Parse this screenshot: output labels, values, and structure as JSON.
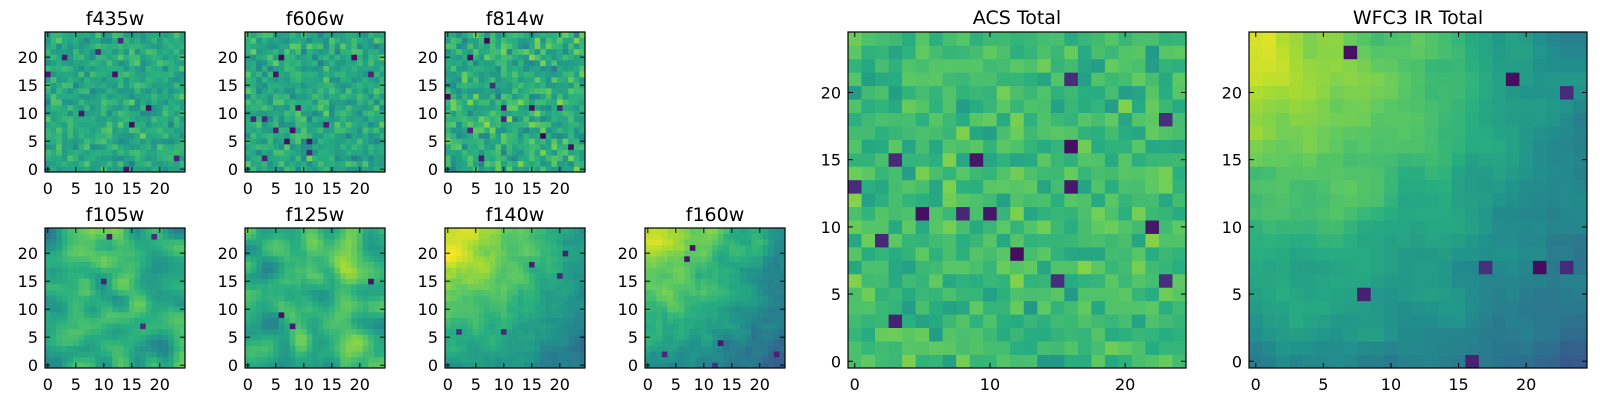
{
  "figure_title": "",
  "colormap": {
    "name": "viridis",
    "stops": [
      "#440154",
      "#472d7b",
      "#3b528b",
      "#2c728e",
      "#21918c",
      "#28ae80",
      "#5ec962",
      "#addc30",
      "#fde725"
    ]
  },
  "chart_data": [
    {
      "type": "heatmap",
      "title": "f435w",
      "grid_size": 25,
      "x_ticks": [
        0,
        5,
        10,
        15,
        20
      ],
      "y_ticks": [
        0,
        5,
        10,
        15,
        20
      ],
      "xlim": [
        -0.5,
        24.5
      ],
      "ylim": [
        -0.5,
        24.5
      ],
      "pattern": "noise",
      "seed": 11,
      "mean": 0.6,
      "spread": 0.18,
      "n_dark": 10
    },
    {
      "type": "heatmap",
      "title": "f606w",
      "grid_size": 25,
      "x_ticks": [
        0,
        5,
        10,
        15,
        20
      ],
      "y_ticks": [
        0,
        5,
        10,
        15,
        20
      ],
      "xlim": [
        -0.5,
        24.5
      ],
      "ylim": [
        -0.5,
        24.5
      ],
      "pattern": "noise",
      "seed": 23,
      "mean": 0.6,
      "spread": 0.2,
      "n_dark": 14
    },
    {
      "type": "heatmap",
      "title": "f814w",
      "grid_size": 25,
      "x_ticks": [
        0,
        5,
        10,
        15,
        20
      ],
      "y_ticks": [
        0,
        5,
        10,
        15,
        20
      ],
      "xlim": [
        -0.5,
        24.5
      ],
      "ylim": [
        -0.5,
        24.5
      ],
      "pattern": "noise",
      "seed": 37,
      "mean": 0.62,
      "spread": 0.24,
      "n_dark": 12
    },
    {
      "type": "heatmap",
      "title": "f105w",
      "grid_size": 25,
      "x_ticks": [
        0,
        5,
        10,
        15,
        20
      ],
      "y_ticks": [
        0,
        5,
        10,
        15,
        20
      ],
      "xlim": [
        -0.5,
        24.5
      ],
      "ylim": [
        -0.5,
        24.5
      ],
      "pattern": "smooth",
      "seed": 41,
      "mean": 0.62,
      "spread": 0.26,
      "n_dark": 4
    },
    {
      "type": "heatmap",
      "title": "f125w",
      "grid_size": 25,
      "x_ticks": [
        0,
        5,
        10,
        15,
        20
      ],
      "y_ticks": [
        0,
        5,
        10,
        15,
        20
      ],
      "xlim": [
        -0.5,
        24.5
      ],
      "ylim": [
        -0.5,
        24.5
      ],
      "pattern": "smooth",
      "seed": 53,
      "mean": 0.65,
      "spread": 0.26,
      "n_dark": 3
    },
    {
      "type": "heatmap",
      "title": "f140w",
      "grid_size": 25,
      "x_ticks": [
        0,
        5,
        10,
        15,
        20
      ],
      "y_ticks": [
        0,
        5,
        10,
        15,
        20
      ],
      "xlim": [
        -0.5,
        24.5
      ],
      "ylim": [
        -0.5,
        24.5
      ],
      "pattern": "gradient",
      "seed": 61,
      "mean": 0.55,
      "spread": 0.14,
      "n_dark": 5
    },
    {
      "type": "heatmap",
      "title": "f160w",
      "grid_size": 25,
      "x_ticks": [
        0,
        5,
        10,
        15,
        20
      ],
      "y_ticks": [
        0,
        5,
        10,
        15,
        20
      ],
      "xlim": [
        -0.5,
        24.5
      ],
      "ylim": [
        -0.5,
        24.5
      ],
      "pattern": "gradient",
      "seed": 71,
      "mean": 0.5,
      "spread": 0.15,
      "n_dark": 6
    },
    {
      "type": "heatmap",
      "title": "ACS Total",
      "grid_size": 25,
      "x_ticks": [
        0,
        10,
        20
      ],
      "y_ticks": [
        0,
        5,
        10,
        15,
        20
      ],
      "xlim": [
        -0.5,
        24.5
      ],
      "ylim": [
        -0.5,
        24.5
      ],
      "pattern": "noise",
      "seed": 83,
      "mean": 0.68,
      "spread": 0.17,
      "n_dark": 16
    },
    {
      "type": "heatmap",
      "title": "WFC3 IR Total",
      "grid_size": 25,
      "x_ticks": [
        0,
        5,
        10,
        15,
        20
      ],
      "y_ticks": [
        0,
        5,
        10,
        15,
        20
      ],
      "xlim": [
        -0.5,
        24.5
      ],
      "ylim": [
        -0.5,
        24.5
      ],
      "pattern": "gradient",
      "seed": 97,
      "mean": 0.5,
      "spread": 0.12,
      "n_dark": 8
    }
  ]
}
